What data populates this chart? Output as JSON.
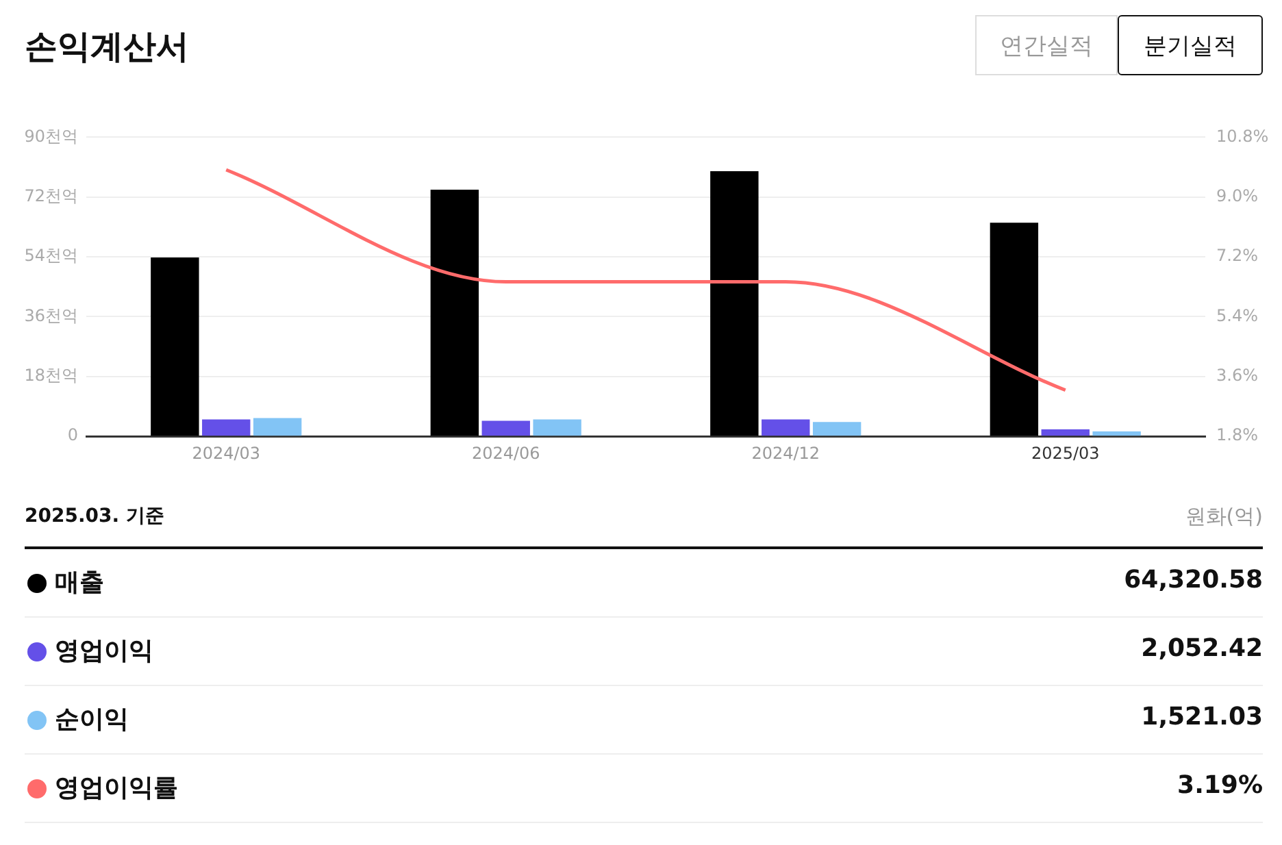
{
  "chart_data": {
    "type": "bar",
    "title": "손익계산서",
    "categories": [
      "2024/03",
      "2024/06",
      "2024/12",
      "2025/03"
    ],
    "series": [
      {
        "name": "매출",
        "color": "#000000",
        "values": [
          53.8,
          74.2,
          79.8,
          64.3
        ]
      },
      {
        "name": "영업이익",
        "color": "#6450e8",
        "values": [
          5.1,
          4.7,
          5.1,
          2.1
        ]
      },
      {
        "name": "순이익",
        "color": "#82c4f5",
        "values": [
          5.5,
          5.1,
          4.3,
          1.5
        ]
      },
      {
        "name": "영업이익률",
        "type": "line",
        "axis": "y2",
        "color": "#ff6b6b",
        "values": [
          9.82,
          6.45,
          6.45,
          3.19
        ]
      }
    ],
    "ylim": [
      0,
      90
    ],
    "yticks": [
      0,
      {
        "value": 18,
        "label": "18천억"
      },
      {
        "value": 36,
        "label": "36천억"
      },
      {
        "value": 54,
        "label": "54천억"
      },
      {
        "value": 72,
        "label": "72천억"
      },
      {
        "value": 90,
        "label": "90천억"
      }
    ],
    "y2lim": [
      1.8,
      10.8
    ],
    "y2ticks": [
      {
        "value": 1.8,
        "label": "1.8%"
      },
      {
        "value": 3.6,
        "label": "3.6%"
      },
      {
        "value": 5.4,
        "label": "5.4%"
      },
      {
        "value": 7.2,
        "label": "7.2%"
      },
      {
        "value": 9,
        "label": "9.0%"
      },
      {
        "value": 10.8,
        "label": "10.8%"
      }
    ],
    "grid": "y",
    "legend": "bottom",
    "marker": "none",
    "line_style": "solid",
    "annotations": [
      "연간실적",
      "분기실적",
      "2025.03. 기준",
      "원화(억)",
      "64,320.58",
      "2,052.42",
      "1,521.03",
      "3.19%"
    ]
  }
}
